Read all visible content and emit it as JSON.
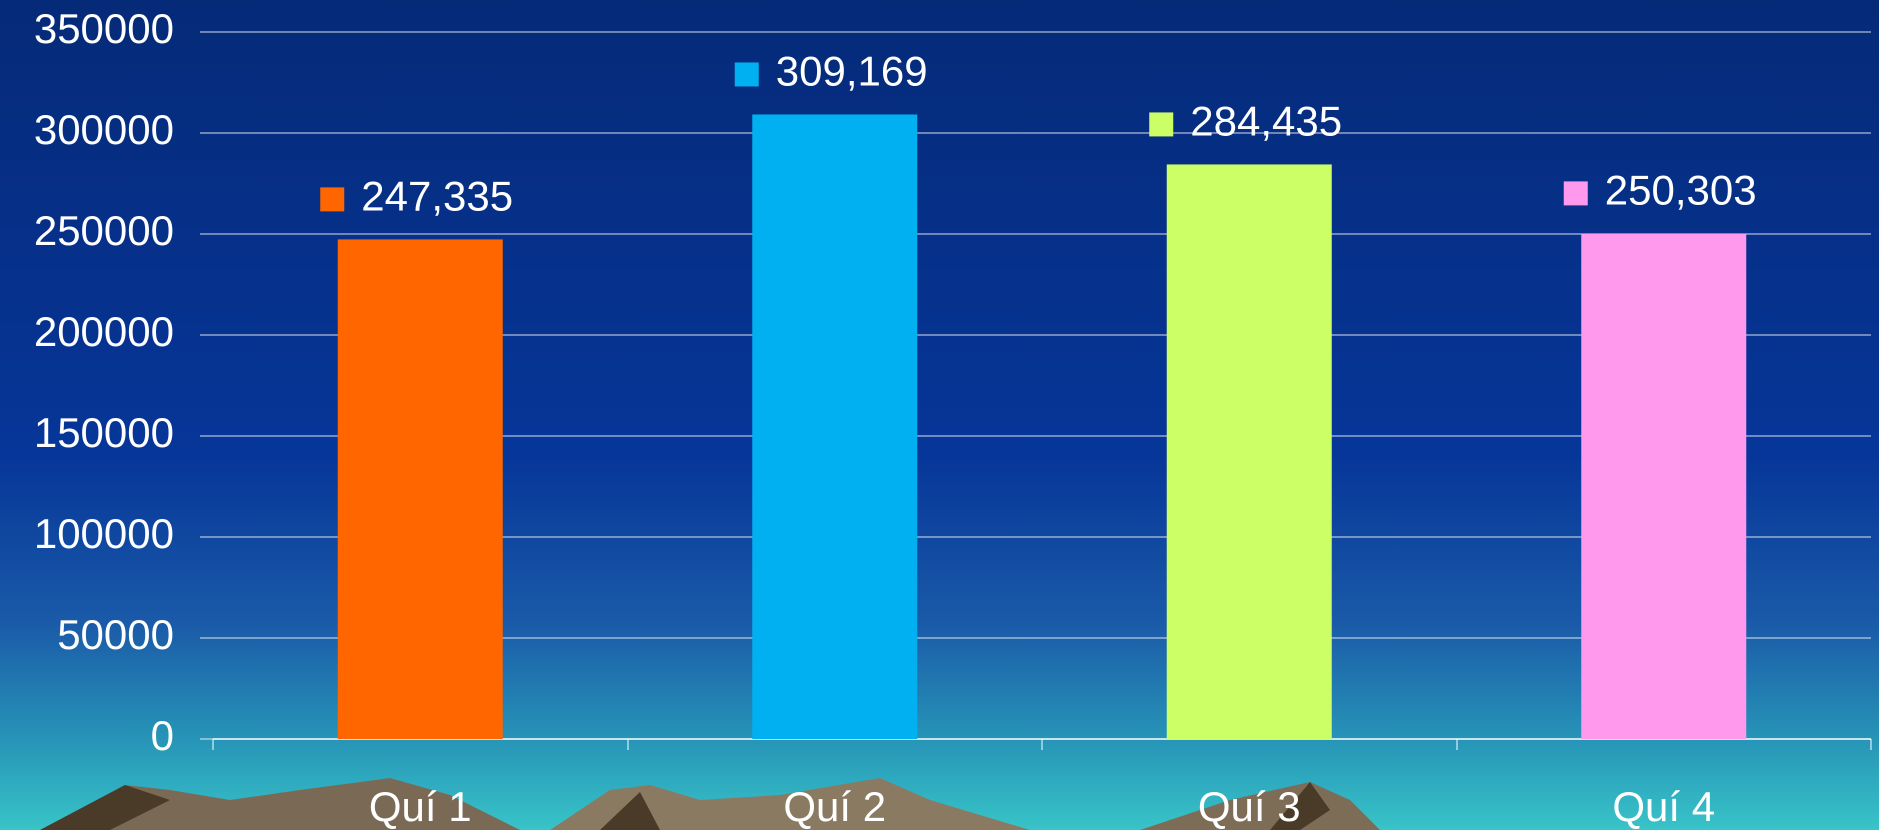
{
  "chart_data": {
    "type": "bar",
    "categories": [
      "Quí 1",
      "Quí 2",
      "Quí 3",
      "Quí 4"
    ],
    "values": [
      247335,
      309169,
      284435,
      250303
    ],
    "value_labels": [
      "247,335",
      "309,169",
      "284,435",
      "250,303"
    ],
    "colors": [
      "#ff6600",
      "#00b0f0",
      "#ccff66",
      "#ff99ee"
    ],
    "ylim": [
      0,
      350000
    ],
    "yticks": [
      0,
      50000,
      100000,
      150000,
      200000,
      250000,
      300000,
      350000
    ],
    "grid": true
  }
}
